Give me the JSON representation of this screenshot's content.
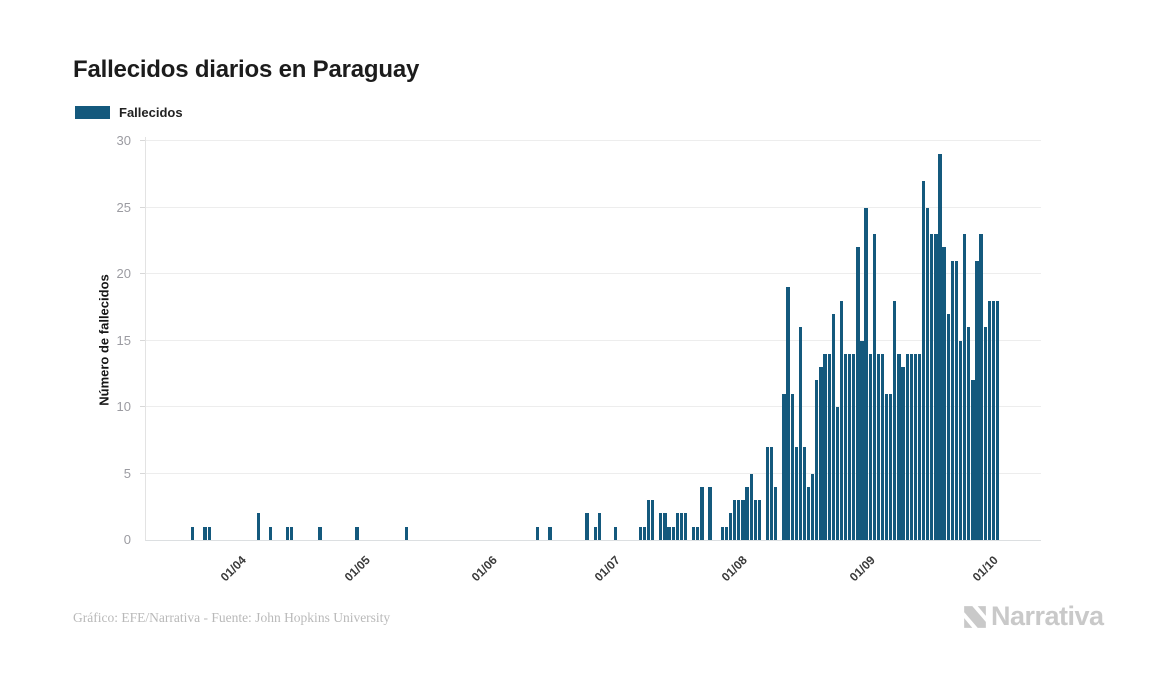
{
  "title": "Fallecidos diarios en Paraguay",
  "legend": {
    "label": "Fallecidos",
    "color": "#14597d"
  },
  "footer": {
    "credit": "Gráfico: EFE/Narrativa - Fuente: John Hopkins University",
    "logo_text": "Narrativa"
  },
  "chart_data": {
    "type": "bar",
    "title": "Fallecidos diarios en Paraguay",
    "xlabel": "",
    "ylabel": "Número de fallecidos",
    "ylim": [
      0,
      30
    ],
    "grid": true,
    "legend_position": "top-left",
    "bar_color": "#14597d",
    "y_ticks": [
      0,
      5,
      10,
      15,
      20,
      25,
      30
    ],
    "x_ticks": [
      {
        "label": "01/04",
        "day": 23
      },
      {
        "label": "01/05",
        "day": 53
      },
      {
        "label": "01/06",
        "day": 84
      },
      {
        "label": "01/07",
        "day": 114
      },
      {
        "label": "01/08",
        "day": 145
      },
      {
        "label": "01/09",
        "day": 176
      },
      {
        "label": "01/10",
        "day": 206
      }
    ],
    "x_domain_start_label": "09/03",
    "domain_days": 218,
    "series_name": "Fallecidos",
    "values": [
      0,
      0,
      0,
      0,
      0,
      0,
      0,
      0,
      0,
      0,
      0,
      1,
      0,
      0,
      1,
      1,
      0,
      0,
      0,
      0,
      0,
      0,
      0,
      0,
      0,
      0,
      0,
      2,
      0,
      0,
      1,
      0,
      0,
      0,
      1,
      1,
      0,
      0,
      0,
      0,
      0,
      0,
      1,
      0,
      0,
      0,
      0,
      0,
      0,
      0,
      0,
      1,
      0,
      0,
      0,
      0,
      0,
      0,
      0,
      0,
      0,
      0,
      0,
      1,
      0,
      0,
      0,
      0,
      0,
      0,
      0,
      0,
      0,
      0,
      0,
      0,
      0,
      0,
      0,
      0,
      0,
      0,
      0,
      0,
      0,
      0,
      0,
      0,
      0,
      0,
      0,
      0,
      0,
      0,
      0,
      1,
      0,
      0,
      1,
      0,
      0,
      0,
      0,
      0,
      0,
      0,
      0,
      2,
      0,
      1,
      2,
      0,
      0,
      0,
      1,
      0,
      0,
      0,
      0,
      0,
      1,
      1,
      3,
      3,
      0,
      2,
      2,
      1,
      1,
      2,
      2,
      2,
      0,
      1,
      1,
      4,
      0,
      4,
      0,
      0,
      1,
      1,
      2,
      3,
      3,
      3,
      4,
      5,
      3,
      3,
      0,
      7,
      7,
      4,
      0,
      11,
      19,
      11,
      7,
      16,
      7,
      4,
      5,
      12,
      13,
      14,
      14,
      17,
      10,
      18,
      14,
      14,
      14,
      22,
      15,
      25,
      14,
      23,
      14,
      14,
      11,
      11,
      18,
      14,
      13,
      14,
      14,
      14,
      14,
      27,
      25,
      23,
      23,
      29,
      22,
      17,
      21,
      21,
      15,
      23,
      16,
      12,
      21,
      23,
      16,
      18,
      18,
      18
    ]
  }
}
